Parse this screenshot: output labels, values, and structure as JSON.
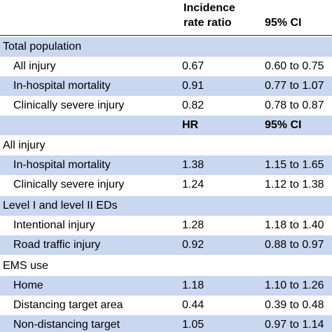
{
  "header": {
    "col1_line1": "Incidence",
    "col1_line2": "rate ratio",
    "col2": "95% CI"
  },
  "sections": {
    "total": {
      "title": "Total population",
      "rows": [
        {
          "label": "All injury",
          "v1": "0.67",
          "v2": "0.60 to 0.75"
        },
        {
          "label": "In-hospital mortality",
          "v1": "0.91",
          "v2": "0.77 to 1.07"
        },
        {
          "label": "Clinically severe injury",
          "v1": "0.82",
          "v2": "0.78 to 0.87"
        }
      ]
    },
    "subheader": {
      "col1": "HR",
      "col2": "95% CI"
    },
    "all_injury": {
      "title": "All injury",
      "rows": [
        {
          "label": "In-hospital mortality",
          "v1": "1.38",
          "v2": "1.15 to 1.65"
        },
        {
          "label": "Clinically severe injury",
          "v1": "1.24",
          "v2": "1.12 to 1.38"
        }
      ]
    },
    "level": {
      "title": "Level I and level II EDs",
      "rows": [
        {
          "label": "Intentional injury",
          "v1": "1.28",
          "v2": "1.18 to 1.40"
        },
        {
          "label": "Road traffic injury",
          "v1": "0.92",
          "v2": "0.88 to 0.97"
        }
      ]
    },
    "ems": {
      "title": "EMS use",
      "rows": [
        {
          "label": "Home",
          "v1": "1.18",
          "v2": "1.10 to 1.26"
        },
        {
          "label": "Distancing target area",
          "v1": "0.44",
          "v2": "0.39 to 0.48"
        },
        {
          "label": "Non-distancing target",
          "v1": "1.05",
          "v2": "0.97 to 1.14"
        }
      ]
    }
  }
}
